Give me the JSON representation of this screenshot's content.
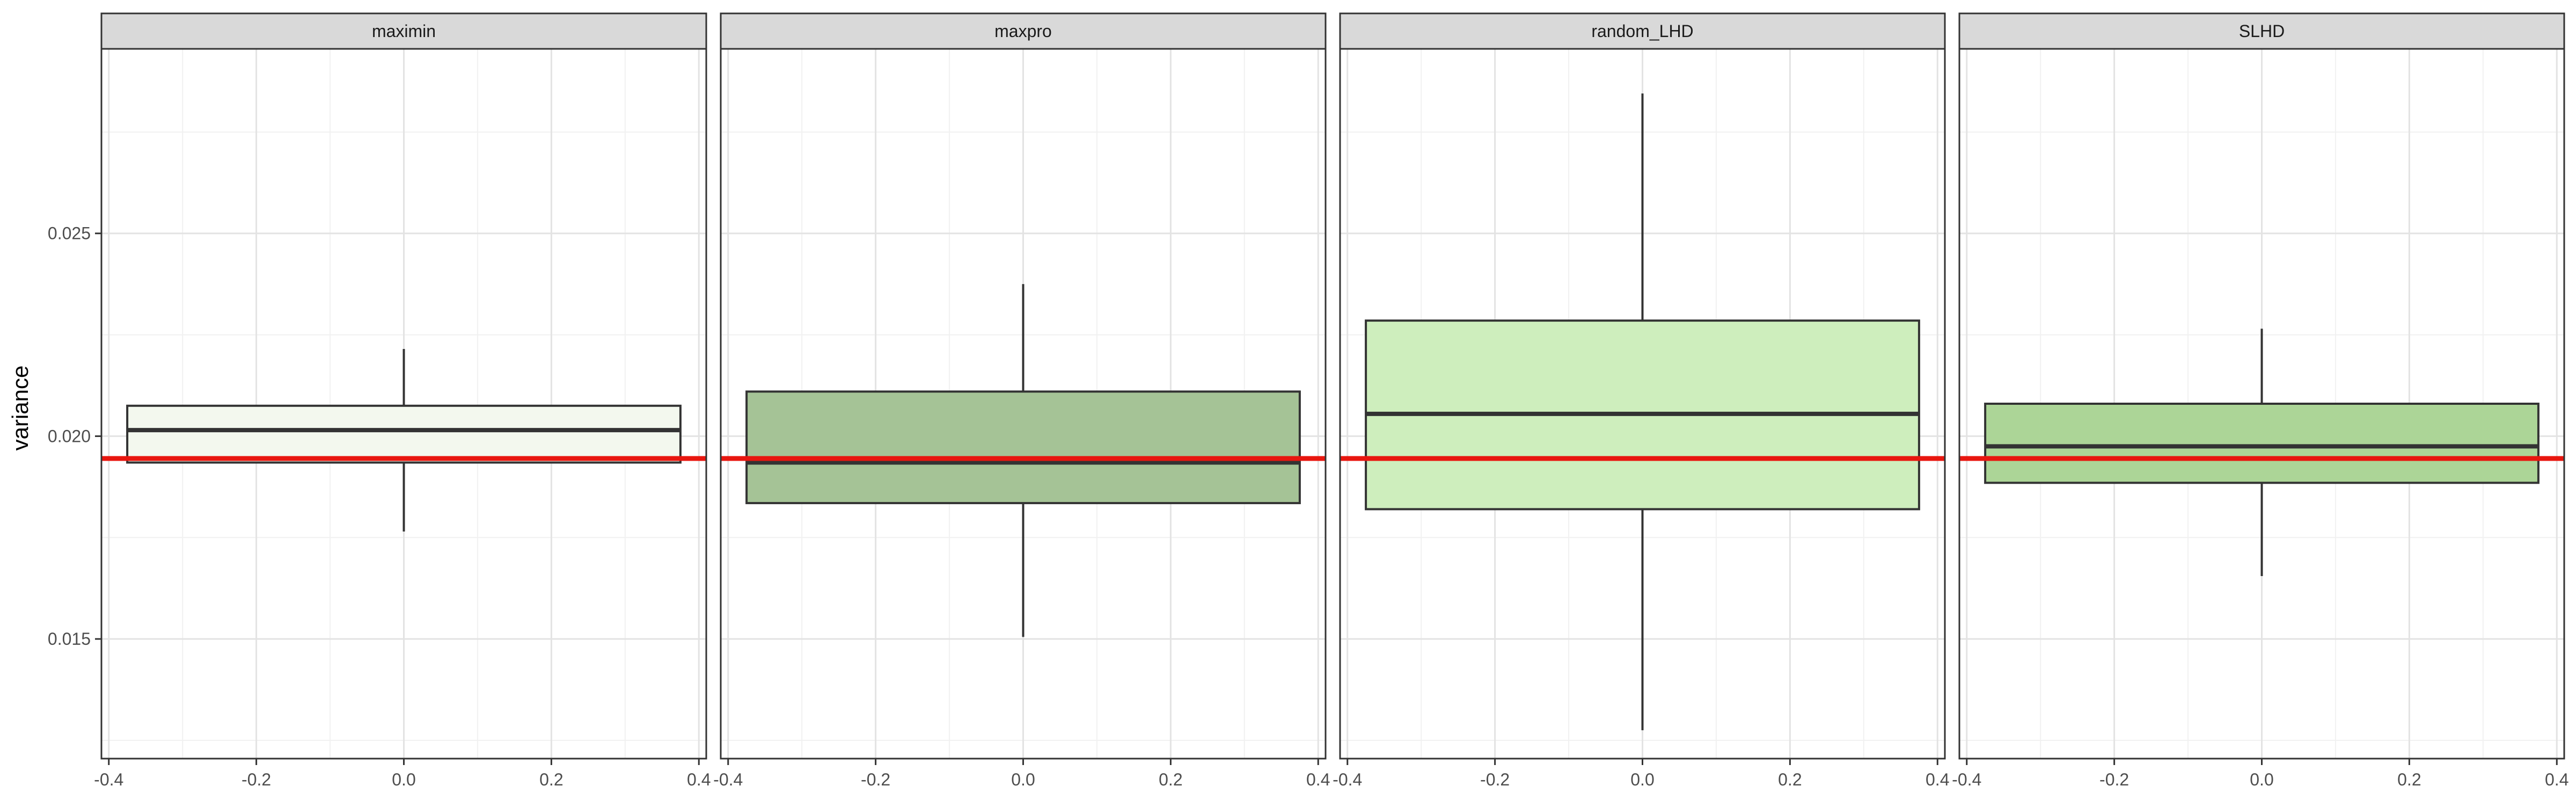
{
  "chart_data": {
    "type": "boxplot",
    "ylabel": "variance",
    "xlabel": "",
    "xlim": [
      -0.41,
      0.41
    ],
    "ylim": [
      0.01205,
      0.02955
    ],
    "x_ticks": [
      -0.4,
      -0.2,
      0.0,
      0.2,
      0.4
    ],
    "x_tick_labels": [
      "-0.4",
      "-0.2",
      "0.0",
      "0.2",
      "0.4"
    ],
    "y_ticks": [
      0.015,
      0.02,
      0.025
    ],
    "y_tick_labels": [
      "0.015",
      "0.020",
      "0.025"
    ],
    "grid": true,
    "reference_line": {
      "y": 0.01945,
      "color": "#e8160f"
    },
    "box_x_range": [
      -0.375,
      0.375
    ],
    "panels": [
      {
        "name": "maximin",
        "whisker_low": 0.01765,
        "q1": 0.01935,
        "median": 0.02015,
        "q3": 0.02075,
        "whisker_high": 0.02215,
        "color": "#f3f8ee"
      },
      {
        "name": "maxpro",
        "whisker_low": 0.01505,
        "q1": 0.01835,
        "median": 0.01935,
        "q3": 0.0211,
        "whisker_high": 0.02375,
        "color": "#a5c396"
      },
      {
        "name": "random_LHD",
        "whisker_low": 0.01275,
        "q1": 0.0182,
        "median": 0.02055,
        "q3": 0.02285,
        "whisker_high": 0.02845,
        "color": "#ceeebd"
      },
      {
        "name": "SLHD",
        "whisker_low": 0.01655,
        "q1": 0.01885,
        "median": 0.01975,
        "q3": 0.0208,
        "whisker_high": 0.02265,
        "color": "#acd597"
      }
    ]
  }
}
